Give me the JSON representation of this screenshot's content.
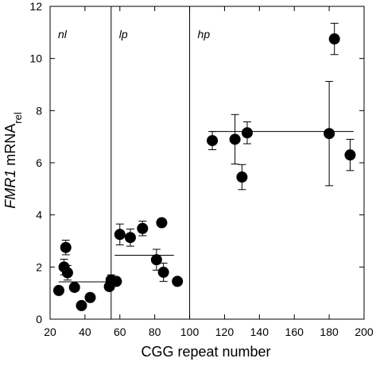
{
  "chart_data": {
    "type": "scatter",
    "xlabel": "CGG repeat number",
    "ylabel": {
      "prefix": "FMR1",
      "main": " mRNA",
      "subscript": "rel"
    },
    "xlim": [
      20,
      200
    ],
    "ylim": [
      0,
      12
    ],
    "xticks": [
      20,
      40,
      60,
      80,
      100,
      120,
      140,
      160,
      180,
      200
    ],
    "yticks": [
      0,
      2,
      4,
      6,
      8,
      10,
      12
    ],
    "grid": false,
    "region_boundaries": [
      55,
      100
    ],
    "regions": [
      {
        "label": "nl",
        "x_start": 20,
        "x_end": 55,
        "mean": 1.43
      },
      {
        "label": "lp",
        "x_start": 55,
        "x_end": 100,
        "mean": 2.45
      },
      {
        "label": "hp",
        "x_start": 100,
        "x_end": 200,
        "mean": 7.2
      }
    ],
    "mean_lines": [
      {
        "region": "nl",
        "x_from": 25,
        "x_to": 54,
        "y": 1.43
      },
      {
        "region": "lp",
        "x_from": 57,
        "x_to": 91,
        "y": 2.45
      },
      {
        "region": "hp",
        "x_from": 112,
        "x_to": 194,
        "y": 7.2
      }
    ],
    "points": [
      {
        "x": 25,
        "y": 1.1,
        "err": null
      },
      {
        "x": 28,
        "y": 2.0,
        "err": 0.3
      },
      {
        "x": 29,
        "y": 2.75,
        "err": 0.28
      },
      {
        "x": 30,
        "y": 1.78,
        "err": 0.28
      },
      {
        "x": 34,
        "y": 1.22,
        "err": null
      },
      {
        "x": 38,
        "y": 0.52,
        "err": null
      },
      {
        "x": 43,
        "y": 0.83,
        "err": null
      },
      {
        "x": 54,
        "y": 1.25,
        "err": null
      },
      {
        "x": 55,
        "y": 1.5,
        "err": 0.2
      },
      {
        "x": 58,
        "y": 1.45,
        "err": null
      },
      {
        "x": 60,
        "y": 3.25,
        "err": 0.4
      },
      {
        "x": 66,
        "y": 3.13,
        "err": 0.33
      },
      {
        "x": 73,
        "y": 3.48,
        "err": 0.28
      },
      {
        "x": 81,
        "y": 2.28,
        "err": 0.4
      },
      {
        "x": 84,
        "y": 3.7,
        "err": null
      },
      {
        "x": 85,
        "y": 1.8,
        "err": 0.35
      },
      {
        "x": 93,
        "y": 1.45,
        "err": null
      },
      {
        "x": 113,
        "y": 6.85,
        "err": 0.35
      },
      {
        "x": 126,
        "y": 6.9,
        "err": 0.95
      },
      {
        "x": 130,
        "y": 5.45,
        "err": 0.48
      },
      {
        "x": 133,
        "y": 7.15,
        "err": 0.42
      },
      {
        "x": 180,
        "y": 7.12,
        "err": 2.0
      },
      {
        "x": 183,
        "y": 10.75,
        "err": 0.6
      },
      {
        "x": 192,
        "y": 6.3,
        "err": 0.6
      }
    ]
  }
}
